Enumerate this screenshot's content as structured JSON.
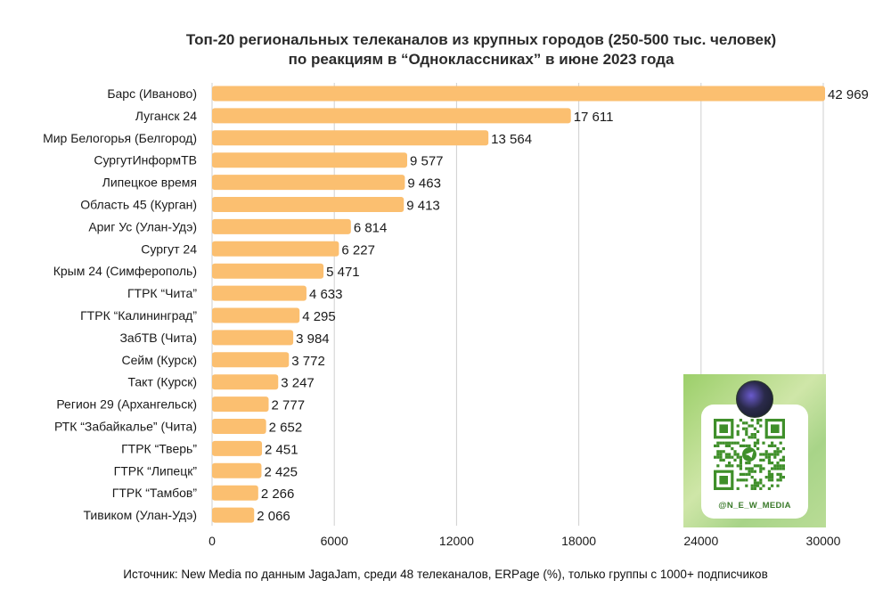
{
  "title_line1": "Топ-20 региональных телеканалов из крупных городов (250-500 тыс. человек)",
  "title_line2": "по реакциям в “Одноклассниках” в июне 2023 года",
  "source": "Источник: New Media по данным JagaJam, среди 48 телеканалов, ERPage (%), только группы с 1000+ подписчиков",
  "qr_handle": "@N_E_W_MEDIA",
  "colors": {
    "bar": "#fbbf70",
    "grid": "#cfcfcf"
  },
  "chart_data": {
    "type": "bar",
    "orientation": "horizontal",
    "title": "Топ-20 региональных телеканалов из крупных городов (250-500 тыс. человек) по реакциям в “Одноклассниках” в июне 2023 года",
    "categories": [
      "Барс (Иваново)",
      "Луганск 24",
      "Мир Белогорья (Белгород)",
      "СургутИнформТВ",
      "Липецкое время",
      "Область 45 (Курган)",
      "Ариг Ус (Улан-Удэ)",
      "Сургут 24",
      "Крым 24 (Симферополь)",
      "ГТРК “Чита”",
      "ГТРК “Калининград”",
      "ЗабТВ (Чита)",
      "Сейм (Курск)",
      "Такт (Курск)",
      "Регион 29 (Архангельск)",
      "РТК “Забайкалье” (Чита)",
      "ГТРК “Тверь”",
      "ГТРК “Липецк”",
      "ГТРК “Тамбов”",
      "Тивиком (Улан-Удэ)"
    ],
    "values": [
      42969,
      17611,
      13564,
      9577,
      9463,
      9413,
      6814,
      6227,
      5471,
      4633,
      4295,
      3984,
      3772,
      3247,
      2777,
      2652,
      2451,
      2425,
      2266,
      2066
    ],
    "value_labels": [
      "42 969",
      "17 611",
      "13 564",
      "9 577",
      "9 463",
      "9 413",
      "6 814",
      "6 227",
      "5 471",
      "4 633",
      "4 295",
      "3 984",
      "3 772",
      "3 247",
      "2 777",
      "2 652",
      "2 451",
      "2 425",
      "2 266",
      "2 066"
    ],
    "x_ticks": [
      0,
      6000,
      12000,
      18000,
      24000,
      30000
    ],
    "xlim": [
      0,
      30000
    ],
    "grid": true,
    "xlabel": "",
    "ylabel": ""
  }
}
